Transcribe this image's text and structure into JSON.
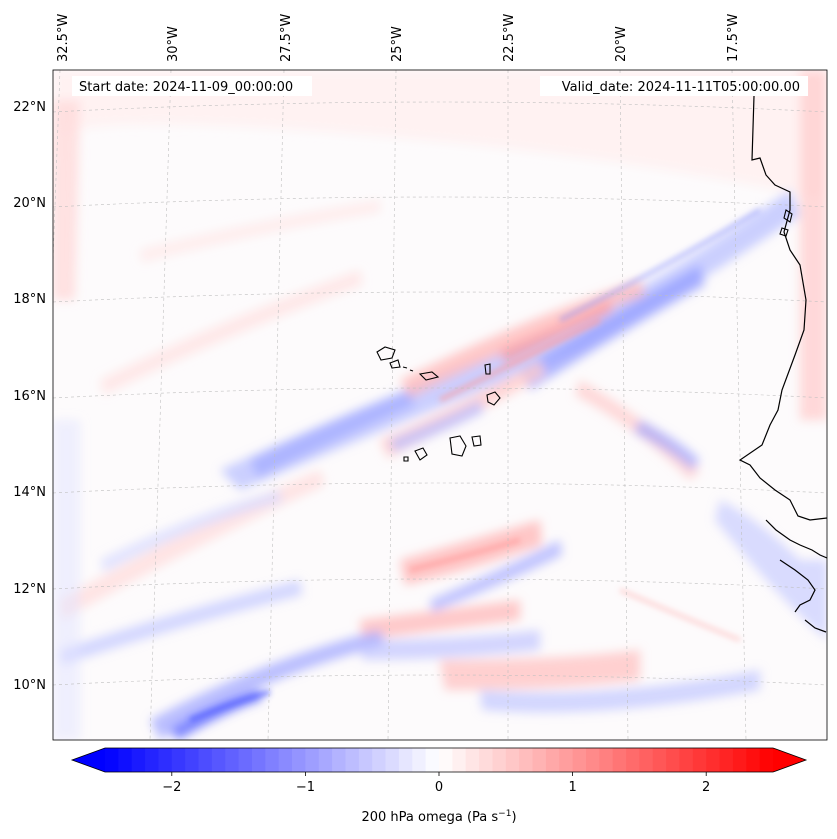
{
  "header": {
    "start_date": "Start date: 2024-11-09_00:00:00",
    "valid_date": "Valid_date: 2024-11-11T05:00:00.00"
  },
  "map": {
    "projection": "lambert-conformal",
    "lon_labels": [
      "32.5°W",
      "30°W",
      "27.5°W",
      "25°W",
      "22.5°W",
      "20°W",
      "17.5°W"
    ],
    "lat_labels": [
      "22°N",
      "20°N",
      "18°N",
      "16°N",
      "14°N",
      "12°N",
      "10°N"
    ],
    "gridlines": true,
    "field": "200 hPa omega",
    "coastline_color": "#000000"
  },
  "colorbar": {
    "label_main": "200 hPa omega (Pa s",
    "label_exp": "−1",
    "label_close": ")",
    "ticks": [
      "−2",
      "−1",
      "0",
      "1",
      "2"
    ],
    "tick_values": [
      -2,
      -1,
      0,
      1,
      2
    ],
    "range": [
      -2.5,
      2.5
    ],
    "extend": "both",
    "cmap": "bwr",
    "min_color": "#0000ff",
    "mid_color": "#ffffff",
    "max_color": "#ff0000"
  }
}
